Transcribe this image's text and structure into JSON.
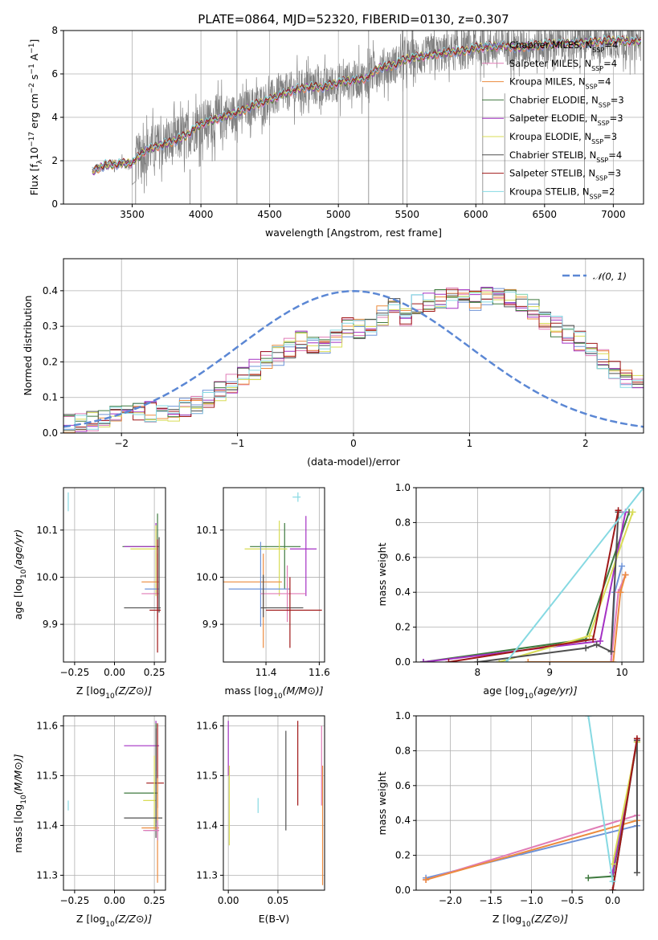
{
  "title": "PLATE=0864, MJD=52320, FIBERID=0130, z=0.307",
  "colors": {
    "Chabrier MILES": "#6f94d8",
    "Salpeter MILES": "#e07cb6",
    "Kroupa MILES": "#ec8b3e",
    "Chabrier ELODIE": "#3f7a3f",
    "Salpeter ELODIE": "#a431c4",
    "Kroupa ELODIE": "#d8dc55",
    "Chabrier STELIB": "#505050",
    "Salpeter STELIB": "#a01818",
    "Kroupa STELIB": "#86d9e2",
    "data": "#808080",
    "normal": "#5b87d4",
    "grid": "#b0b0b0"
  },
  "legend": [
    {
      "name": "Chabrier MILES",
      "n": "4"
    },
    {
      "name": "Salpeter MILES",
      "n": "4"
    },
    {
      "name": "Kroupa MILES",
      "n": "4"
    },
    {
      "name": "Chabrier ELODIE",
      "n": "3"
    },
    {
      "name": "Salpeter ELODIE",
      "n": "3"
    },
    {
      "name": "Kroupa ELODIE",
      "n": "3"
    },
    {
      "name": "Chabrier STELIB",
      "n": "4"
    },
    {
      "name": "Salpeter STELIB",
      "n": "3"
    },
    {
      "name": "Kroupa STELIB",
      "n": "2"
    }
  ],
  "nssp_text": "N",
  "nssp_sub": "SSP",
  "normal_label": "𝒩(0, 1)",
  "chart_data": [
    {
      "id": "spectrum",
      "type": "line",
      "xlabel": "wavelength [Angstrom, rest frame]",
      "ylabel": "Flux [f",
      "xlim": [
        3000,
        7220
      ],
      "ylim": [
        0,
        8
      ],
      "xticks": [
        3500,
        4000,
        4500,
        5000,
        5500,
        6000,
        6500,
        7000
      ],
      "yticks": [
        0,
        2,
        4,
        6,
        8
      ],
      "x_start": 3210,
      "x_end": 7200,
      "continuum": [
        [
          3210,
          1.5
        ],
        [
          3300,
          1.8
        ],
        [
          3500,
          1.9
        ],
        [
          3600,
          2.5
        ],
        [
          3700,
          2.7
        ],
        [
          3800,
          2.9
        ],
        [
          3900,
          3.2
        ],
        [
          4000,
          3.7
        ],
        [
          4100,
          3.9
        ],
        [
          4200,
          4.1
        ],
        [
          4300,
          4.3
        ],
        [
          4400,
          4.6
        ],
        [
          4500,
          4.8
        ],
        [
          4600,
          5.1
        ],
        [
          4700,
          5.3
        ],
        [
          4800,
          5.4
        ],
        [
          4900,
          5.4
        ],
        [
          5000,
          5.6
        ],
        [
          5100,
          5.7
        ],
        [
          5200,
          5.8
        ],
        [
          5300,
          6.3
        ],
        [
          5400,
          6.4
        ],
        [
          5500,
          6.7
        ],
        [
          5600,
          6.8
        ],
        [
          5700,
          6.9
        ],
        [
          5800,
          7.0
        ],
        [
          5900,
          7.05
        ],
        [
          6000,
          7.2
        ],
        [
          6100,
          7.25
        ],
        [
          6200,
          7.3
        ],
        [
          6300,
          7.2
        ],
        [
          6400,
          7.3
        ],
        [
          6500,
          7.35
        ],
        [
          6600,
          7.4
        ],
        [
          6700,
          7.4
        ],
        [
          6800,
          7.45
        ],
        [
          6900,
          7.5
        ],
        [
          7000,
          7.55
        ],
        [
          7100,
          7.5
        ],
        [
          7200,
          7.5
        ]
      ],
      "spikes": [
        [
          4262,
          0,
          8
        ],
        [
          5220,
          0,
          8
        ],
        [
          3525,
          0,
          2.6
        ],
        [
          3920,
          0,
          1.6
        ],
        [
          6790,
          0,
          7.6
        ],
        [
          6210,
          0,
          5.1
        ],
        [
          6050,
          0,
          5.4
        ],
        [
          5470,
          0,
          8
        ]
      ]
    },
    {
      "id": "residuals",
      "type": "step-histogram",
      "xlabel": "(data-model)/error",
      "ylabel": "Normed distribution",
      "xlim": [
        -2.5,
        2.5
      ],
      "ylim": [
        0,
        0.49
      ],
      "xticks": [
        -2,
        -1,
        0,
        1,
        2
      ],
      "yticks": [
        0.0,
        0.1,
        0.2,
        0.3,
        0.4
      ],
      "bin_width": 0.1,
      "series_base": [
        0.025,
        0.03,
        0.035,
        0.04,
        0.045,
        0.05,
        0.065,
        0.06,
        0.055,
        0.05,
        0.07,
        0.08,
        0.1,
        0.12,
        0.14,
        0.16,
        0.18,
        0.2,
        0.22,
        0.24,
        0.26,
        0.25,
        0.24,
        0.27,
        0.3,
        0.29,
        0.3,
        0.33,
        0.35,
        0.33,
        0.36,
        0.37,
        0.38,
        0.38,
        0.39,
        0.37,
        0.38,
        0.39,
        0.38,
        0.37,
        0.35,
        0.32,
        0.3,
        0.28,
        0.26,
        0.24,
        0.21,
        0.18,
        0.15,
        0.14,
        0.13,
        0.12,
        0.11,
        0.1,
        0.09,
        0.07,
        0.065,
        0.05,
        0.045,
        0.03
      ]
    },
    {
      "id": "age-vs-Z",
      "type": "errorbar",
      "xlabel": "Z [log",
      "ylabel": "age  [log",
      "xlim": [
        -0.32,
        0.32
      ],
      "ylim": [
        9.82,
        10.19
      ],
      "xticks": [
        -0.25,
        0.0,
        0.25
      ],
      "yticks": [
        9.9,
        10.0,
        10.1
      ]
    },
    {
      "id": "age-vs-mass",
      "type": "errorbar",
      "xlabel": "mass [log",
      "xlim": [
        11.24,
        11.62
      ],
      "ylim": [
        9.82,
        10.19
      ],
      "xticks": [
        11.4,
        11.6
      ],
      "yticks": [
        9.9,
        10.0,
        10.1
      ]
    },
    {
      "id": "weight-vs-age",
      "type": "line",
      "xlabel": "age  [log",
      "ylabel": "mass weight",
      "xlim": [
        7.15,
        10.3
      ],
      "ylim": [
        0,
        1.0
      ],
      "xticks": [
        8,
        9,
        10
      ],
      "yticks": [
        0.0,
        0.2,
        0.4,
        0.6,
        0.8,
        1.0
      ]
    },
    {
      "id": "mass-vs-Z",
      "type": "errorbar",
      "xlabel": "Z [log",
      "ylabel": "mass [log",
      "xlim": [
        -0.32,
        0.32
      ],
      "ylim": [
        11.27,
        11.62
      ],
      "xticks": [
        -0.25,
        0.0,
        0.25
      ],
      "yticks": [
        11.3,
        11.4,
        11.5,
        11.6
      ]
    },
    {
      "id": "mass-vs-ebv",
      "type": "errorbar",
      "xlabel": "E(B-V)",
      "xlim": [
        -0.005,
        0.097
      ],
      "ylim": [
        11.27,
        11.62
      ],
      "xticks": [
        0.0,
        0.05
      ],
      "yticks": [
        11.3,
        11.4,
        11.5,
        11.6
      ]
    },
    {
      "id": "weight-vs-Z",
      "type": "line",
      "xlabel": "Z [log",
      "ylabel": "mass weight",
      "xlim": [
        -2.42,
        0.38
      ],
      "ylim": [
        0,
        1.0
      ],
      "xticks": [
        -2.0,
        -1.5,
        -1.0,
        -0.5,
        0.0
      ],
      "yticks": [
        0.0,
        0.2,
        0.4,
        0.6,
        0.8,
        1.0
      ]
    }
  ]
}
